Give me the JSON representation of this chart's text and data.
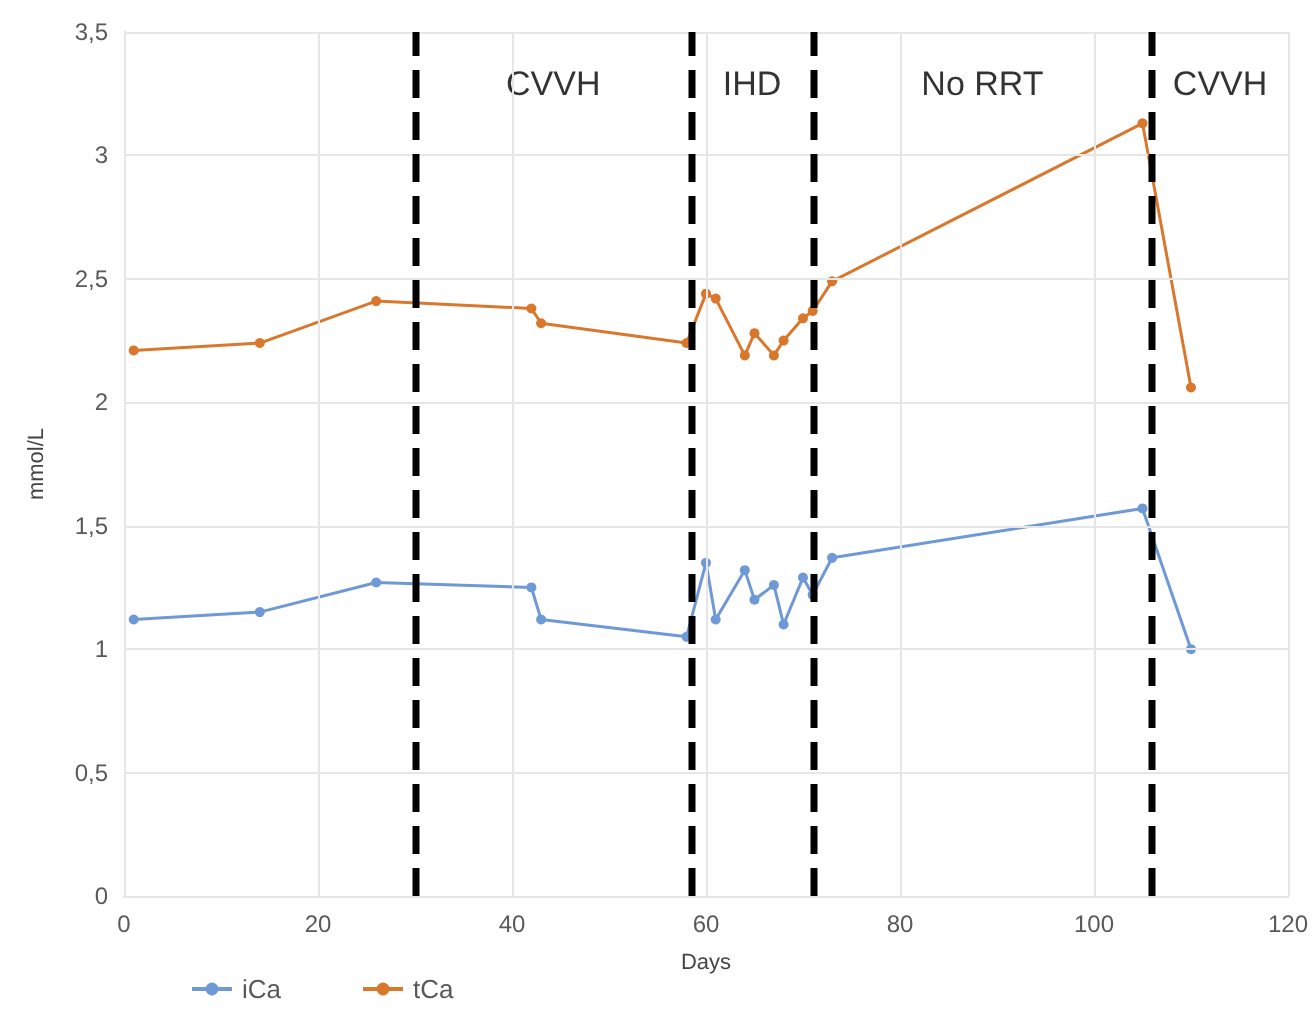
{
  "chart_data": {
    "type": "line",
    "xlabel": "Days",
    "ylabel": "mmol/L",
    "xlim": [
      0,
      120
    ],
    "xticks": [
      0,
      20,
      40,
      60,
      80,
      100,
      120
    ],
    "ylim": [
      0,
      3.5
    ],
    "yticks": [
      {
        "value": 0,
        "label": "0"
      },
      {
        "value": 0.5,
        "label": "0,5"
      },
      {
        "value": 1,
        "label": "1"
      },
      {
        "value": 1.5,
        "label": "1,5"
      },
      {
        "value": 2,
        "label": "2"
      },
      {
        "value": 2.5,
        "label": "2,5"
      },
      {
        "value": 3,
        "label": "3"
      },
      {
        "value": 3.5,
        "label": "3,5"
      }
    ],
    "grid": true,
    "legend": "bottom left",
    "marker": "circle",
    "line_style": "solid",
    "series": [
      {
        "name": "iCa",
        "color": "#6f98d6",
        "x": [
          1,
          14,
          26,
          42,
          43,
          58,
          60,
          61,
          64,
          65,
          67,
          68,
          70,
          71,
          73,
          105,
          110
        ],
        "values": [
          1.12,
          1.15,
          1.27,
          1.25,
          1.12,
          1.05,
          1.35,
          1.12,
          1.32,
          1.2,
          1.26,
          1.1,
          1.29,
          1.22,
          1.37,
          1.57,
          1.0
        ]
      },
      {
        "name": "tCa",
        "color": "#d9782d",
        "x": [
          1,
          14,
          26,
          42,
          43,
          58,
          60,
          61,
          64,
          65,
          67,
          68,
          70,
          71,
          73,
          105,
          110
        ],
        "values": [
          2.21,
          2.24,
          2.41,
          2.38,
          2.32,
          2.24,
          2.44,
          2.42,
          2.19,
          2.28,
          2.19,
          2.25,
          2.34,
          2.37,
          2.49,
          3.13,
          2.06
        ]
      }
    ],
    "ref_lines": [
      {
        "axis": "x",
        "value": 30,
        "color": "#000000",
        "line_style": "dashed"
      },
      {
        "axis": "x",
        "value": 58.5,
        "color": "#000000",
        "line_style": "dashed"
      },
      {
        "axis": "x",
        "value": 71,
        "color": "#000000",
        "line_style": "dashed"
      },
      {
        "axis": "x",
        "value": 106,
        "color": "#000000",
        "line_style": "dashed"
      }
    ],
    "annotations": [
      "CVVH",
      "IHD",
      "No RRT",
      "CVVH"
    ]
  }
}
